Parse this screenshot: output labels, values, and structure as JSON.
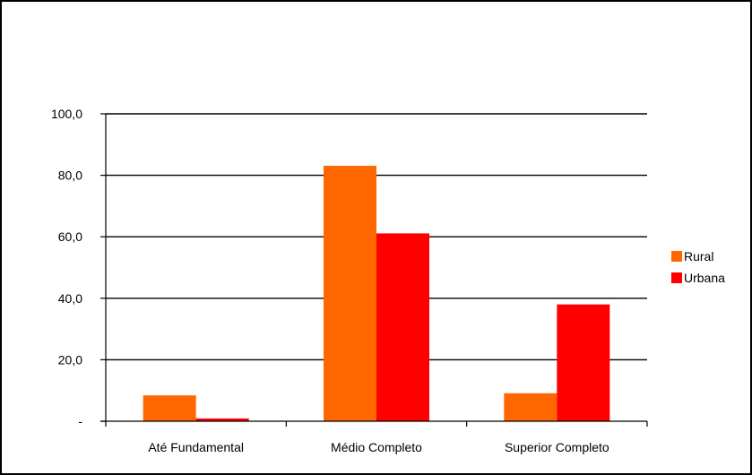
{
  "chart_data": {
    "type": "bar",
    "title": "",
    "xlabel": "",
    "ylabel": "",
    "categories": [
      "Até Fundamental",
      "Médio Completo",
      "Superior Completo"
    ],
    "series": [
      {
        "name": "Rural",
        "color": "#FF6600",
        "values": [
          8.4,
          83.1,
          9.1
        ]
      },
      {
        "name": "Urbana",
        "color": "#FF0000",
        "values": [
          0.9,
          61.1,
          38.0
        ]
      }
    ],
    "ylim": [
      0,
      100
    ],
    "yticks": [
      {
        "value": 0,
        "label": "-"
      },
      {
        "value": 20,
        "label": "20,0"
      },
      {
        "value": 40,
        "label": "40,0"
      },
      {
        "value": 60,
        "label": "60,0"
      },
      {
        "value": 80,
        "label": "80,0"
      },
      {
        "value": 100,
        "label": "100,0"
      }
    ],
    "grid": true,
    "legend_position": "right"
  }
}
